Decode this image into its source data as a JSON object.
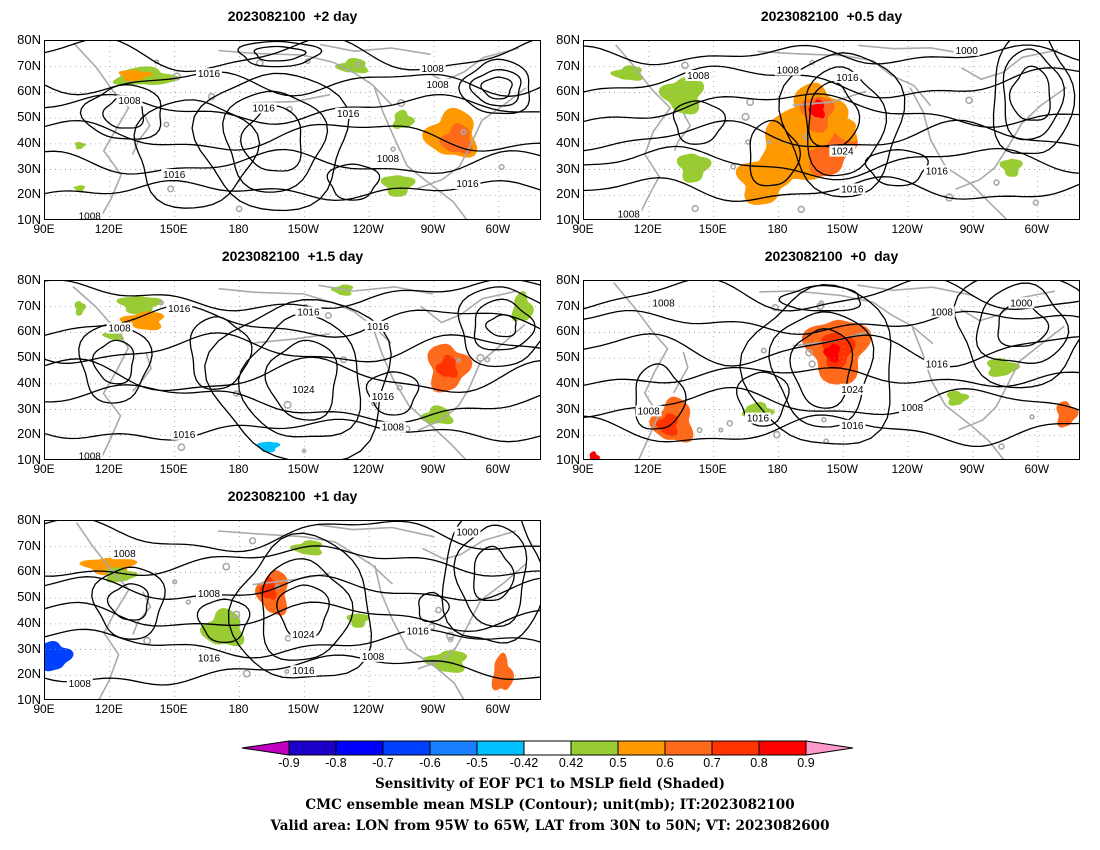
{
  "panels": [
    {
      "id": "p2",
      "title": "2023082100  +2 day",
      "contour_labels": [
        "1016",
        "1008",
        "1008",
        "1016",
        "1016",
        "1008",
        "1016",
        "1008",
        "1016",
        "1008"
      ]
    },
    {
      "id": "p05",
      "title": "2023082100  +0.5 day",
      "contour_labels": [
        "1008",
        "1008",
        "1016",
        "1000",
        "1024",
        "1016",
        "1016",
        "1008"
      ]
    },
    {
      "id": "p15",
      "title": "2023082100  +1.5 day",
      "contour_labels": [
        "1016",
        "1008",
        "1016",
        "1016",
        "1024",
        "1016",
        "1016",
        "1008",
        "1008"
      ]
    },
    {
      "id": "p0",
      "title": "2023082100  +0  day",
      "contour_labels": [
        "1008",
        "1008",
        "1000",
        "1016",
        "1024",
        "1008",
        "1016",
        "1016",
        "1008"
      ]
    },
    {
      "id": "p1",
      "title": "2023082100  +1 day",
      "contour_labels": [
        "1008",
        "1000",
        "1008",
        "1024",
        "1016",
        "1016",
        "1016",
        "1008",
        "1008"
      ]
    }
  ],
  "axes": {
    "lat_ticks": [
      "80N",
      "70N",
      "60N",
      "50N",
      "40N",
      "30N",
      "20N",
      "10N"
    ],
    "lon_ticks": [
      "90E",
      "120E",
      "150E",
      "180",
      "150W",
      "120W",
      "90W",
      "60W"
    ]
  },
  "colorbar": {
    "labels": [
      "-0.9",
      "-0.8",
      "-0.7",
      "-0.6",
      "-0.5",
      "-0.42",
      "0.42",
      "0.5",
      "0.6",
      "0.7",
      "0.8",
      "0.9"
    ],
    "colors": [
      "#c000c0",
      "#1a00c8",
      "#0000ff",
      "#0040ff",
      "#1a7fff",
      "#00c0ff",
      "#ffffff",
      "#99cc33",
      "#ff9900",
      "#ff6a1a",
      "#ff3300",
      "#ff0000",
      "#ff99cc"
    ]
  },
  "caption": {
    "line1": "Sensitivity of EOF PC1 to MSLP field (Shaded)",
    "line2": "CMC ensemble mean MSLP (Contour); unit(mb); IT:2023082100",
    "line3": "Valid area: LON from 95W to 65W, LAT from 30N to 50N; VT: 2023082600"
  }
}
